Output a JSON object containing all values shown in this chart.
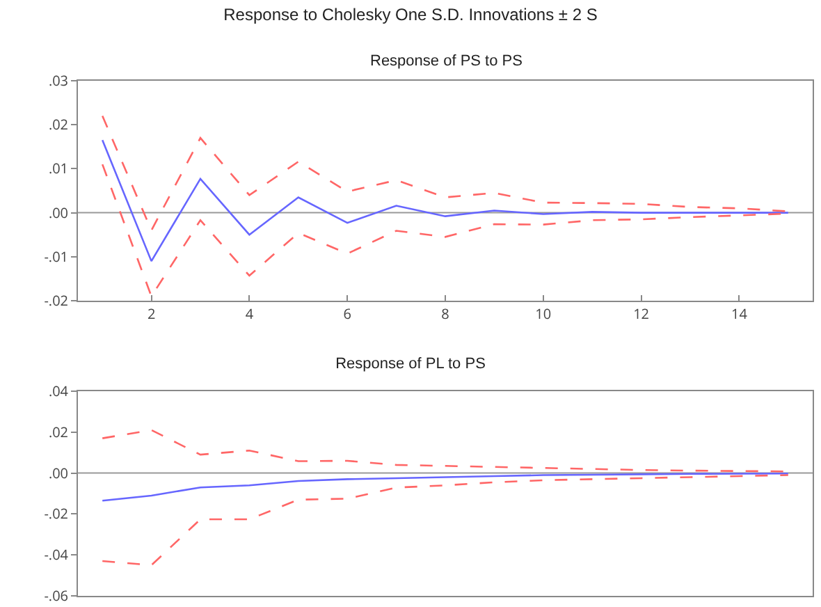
{
  "chart_data": [
    {
      "type": "line",
      "title": "Response to Cholesky One S.D. Innovations ± 2 S",
      "subtitle": "Response of PS to PS",
      "x": [
        1,
        2,
        3,
        4,
        5,
        6,
        7,
        8,
        9,
        10,
        11,
        12,
        13,
        14,
        15
      ],
      "xlim": [
        0.5,
        15.5
      ],
      "xticks": [
        2,
        4,
        6,
        8,
        10,
        12,
        14
      ],
      "ylim": [
        -0.02,
        0.03
      ],
      "yticks": [
        {
          "value": -0.02,
          "label": "-.02"
        },
        {
          "value": -0.01,
          "label": "-.01"
        },
        {
          "value": 0,
          "label": ".00"
        },
        {
          "value": 0.01,
          "label": ".01"
        },
        {
          "value": 0.02,
          "label": ".02"
        },
        {
          "value": 0.03,
          "label": ".03"
        }
      ],
      "series": [
        {
          "color": "#6666ff",
          "line_style": "solid",
          "values": [
            0.0165,
            -0.011,
            0.0077,
            -0.005,
            0.0035,
            -0.0023,
            0.0016,
            -0.0008,
            0.0005,
            -0.0003,
            0.0002,
            0,
            0,
            0,
            0
          ]
        },
        {
          "color": "#ff6666",
          "line_style": "dashed",
          "values": [
            0.022,
            -0.004,
            0.017,
            0.004,
            0.0116,
            0.0048,
            0.0074,
            0.0035,
            0.0045,
            0.0023,
            0.0022,
            0.002,
            0.0013,
            0.001,
            0.0003
          ]
        },
        {
          "color": "#ff6666",
          "line_style": "dashed",
          "values": [
            0.011,
            -0.019,
            -0.0017,
            -0.0143,
            -0.0046,
            -0.0093,
            -0.0041,
            -0.0055,
            -0.0026,
            -0.0027,
            -0.0017,
            -0.0015,
            -0.001,
            -0.0006,
            -0.0002
          ]
        }
      ],
      "ref_lines": [
        {
          "axis": "y",
          "value": 0,
          "color": "#999999"
        }
      ]
    },
    {
      "type": "line",
      "title": "Response of PL to PS",
      "x": [
        1,
        2,
        3,
        4,
        5,
        6,
        7,
        8,
        9,
        10,
        11,
        12,
        13,
        14,
        15
      ],
      "xlim": [
        0.5,
        15.5
      ],
      "ylim": [
        -0.06,
        0.04
      ],
      "yticks": [
        {
          "value": -0.06,
          "label": "-.06"
        },
        {
          "value": -0.04,
          "label": "-.04"
        },
        {
          "value": -0.02,
          "label": "-.02"
        },
        {
          "value": 0,
          "label": ".00"
        },
        {
          "value": 0.02,
          "label": ".02"
        },
        {
          "value": 0.04,
          "label": ".04"
        }
      ],
      "tick_labels": "y",
      "series": [
        {
          "color": "#6666ff",
          "line_style": "solid",
          "values": [
            -0.0135,
            -0.011,
            -0.007,
            -0.006,
            -0.0039,
            -0.003,
            -0.0025,
            -0.002,
            -0.0015,
            -0.001,
            -0.0008,
            -0.0006,
            -0.0004,
            -0.0003,
            -0.0002
          ]
        },
        {
          "color": "#ff6666",
          "line_style": "dashed",
          "values": [
            0.017,
            0.021,
            0.009,
            0.011,
            0.0058,
            0.006,
            0.004,
            0.0035,
            0.003,
            0.0025,
            0.002,
            0.0015,
            0.0012,
            0.001,
            0.0008
          ]
        },
        {
          "color": "#ff6666",
          "line_style": "dashed",
          "values": [
            -0.043,
            -0.045,
            -0.0226,
            -0.0226,
            -0.013,
            -0.0125,
            -0.0071,
            -0.006,
            -0.0045,
            -0.0035,
            -0.003,
            -0.0025,
            -0.002,
            -0.0015,
            -0.001
          ]
        }
      ],
      "ref_lines": [
        {
          "axis": "y",
          "value": 0,
          "color": "#999999"
        }
      ]
    }
  ]
}
